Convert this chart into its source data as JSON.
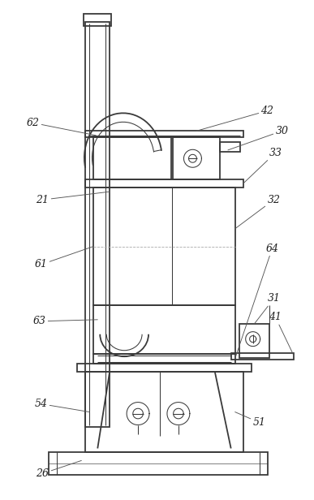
{
  "background_color": "#ffffff",
  "line_color": "#3a3a3a",
  "lw": 1.3,
  "tlw": 0.75,
  "font_size": 9,
  "fig_width": 3.87,
  "fig_height": 6.16
}
